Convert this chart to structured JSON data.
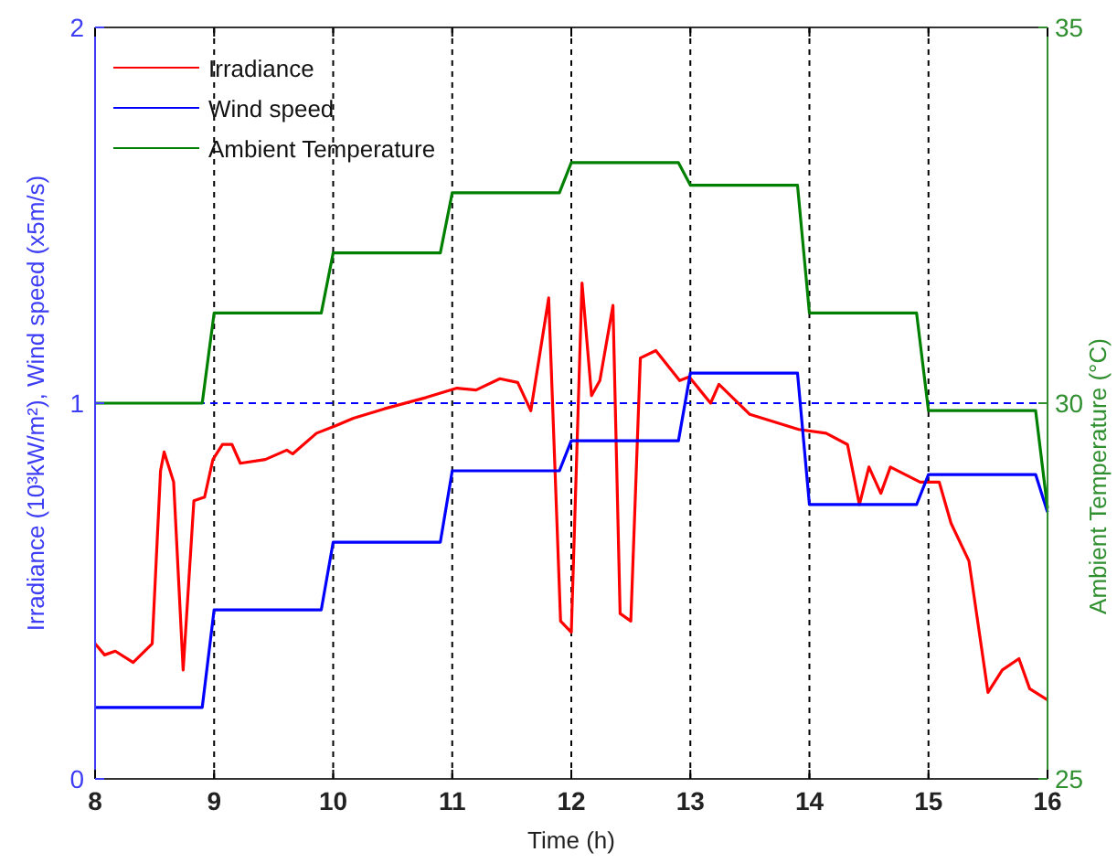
{
  "chart_data": {
    "type": "line",
    "xlabel": "Time (h)",
    "ylabel": "Irradiance (10³kW/m²), Wind speed (x5m/s)",
    "y2label": "Ambient Temperature (°C)",
    "xlim": [
      8,
      16
    ],
    "xticks": [
      8,
      9,
      10,
      11,
      12,
      13,
      14,
      15,
      16
    ],
    "ylim": [
      0,
      2
    ],
    "yticks": [
      0,
      1,
      2
    ],
    "y2lim": [
      25,
      35
    ],
    "y2ticks": [
      25,
      30,
      35
    ],
    "grid": "x",
    "legend": "top left",
    "line_style": "solid",
    "marker": "none",
    "ref_lines": [
      {
        "axis": "y",
        "value": 1,
        "color": "#0000ff",
        "line_style": "dashed"
      }
    ],
    "series": [
      {
        "name": "Irradiance",
        "color": "#ff0000",
        "x": [
          8,
          8.08,
          8.17,
          8.32,
          8.48,
          8.55,
          8.58,
          8.66,
          8.74,
          8.83,
          8.92,
          8.99,
          9.07,
          9.15,
          9.22,
          9.43,
          9.61,
          9.66,
          9.86,
          10.02,
          10.17,
          10.43,
          10.78,
          11.04,
          11.2,
          11.4,
          11.55,
          11.66,
          11.81,
          11.91,
          12,
          12.09,
          12.17,
          12.24,
          12.35,
          12.41,
          12.5,
          12.58,
          12.71,
          12.91,
          12.99,
          13.17,
          13.24,
          13.5,
          13.91,
          14.14,
          14.32,
          14.42,
          14.5,
          14.6,
          14.68,
          14.93,
          15.09,
          15.19,
          15.34,
          15.5,
          15.62,
          15.76,
          15.85,
          16
        ],
        "values": [
          0.36,
          0.33,
          0.34,
          0.31,
          0.36,
          0.82,
          0.87,
          0.79,
          0.29,
          0.74,
          0.75,
          0.85,
          0.89,
          0.89,
          0.84,
          0.85,
          0.875,
          0.865,
          0.92,
          0.94,
          0.96,
          0.985,
          1.015,
          1.04,
          1.035,
          1.065,
          1.055,
          0.98,
          1.28,
          0.42,
          0.39,
          1.32,
          1.02,
          1.06,
          1.26,
          0.44,
          0.42,
          1.12,
          1.14,
          1.06,
          1.07,
          1,
          1.05,
          0.97,
          0.93,
          0.92,
          0.89,
          0.73,
          0.83,
          0.76,
          0.83,
          0.79,
          0.79,
          0.68,
          0.58,
          0.23,
          0.29,
          0.32,
          0.24,
          0.21
        ]
      },
      {
        "name": "Wind speed",
        "color": "#0000ff",
        "x": [
          8,
          8.9,
          9,
          9.9,
          10,
          10.9,
          11,
          11.9,
          12,
          12.9,
          13,
          13.9,
          14,
          14.9,
          15,
          15.9,
          16
        ],
        "values": [
          0.19,
          0.19,
          0.45,
          0.45,
          0.63,
          0.63,
          0.82,
          0.82,
          0.9,
          0.9,
          1.08,
          1.08,
          0.73,
          0.73,
          0.81,
          0.81,
          0.71
        ]
      },
      {
        "name": "Ambient Temperature",
        "color": "#008000",
        "axis": "y2",
        "x": [
          8,
          8.9,
          9,
          9.9,
          10,
          10.9,
          11,
          11.9,
          12,
          12.9,
          13,
          13.9,
          14,
          14.9,
          15,
          15.9,
          16
        ],
        "values": [
          30,
          30,
          31.2,
          31.2,
          32,
          32,
          32.8,
          32.8,
          33.2,
          33.2,
          32.9,
          32.9,
          31.2,
          31.2,
          29.9,
          29.9,
          28.6
        ]
      }
    ]
  }
}
